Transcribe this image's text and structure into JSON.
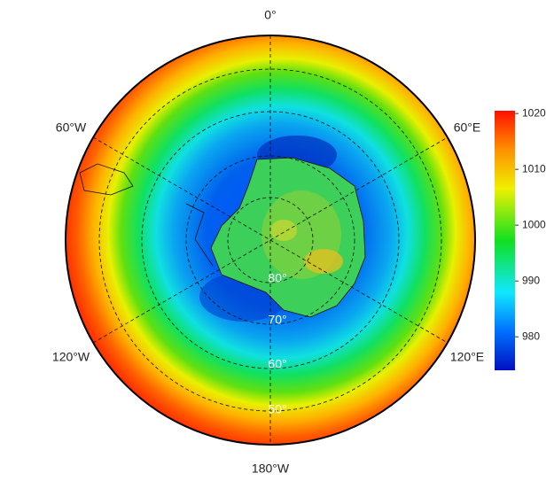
{
  "map": {
    "lon_labels": {
      "top": "0°",
      "upper_right": "60°E",
      "lower_right": "120°E",
      "bottom": "180°W",
      "lower_left": "120°W",
      "upper_left": "60°W"
    },
    "lat_labels": [
      "80°",
      "70°",
      "60°",
      "50°"
    ],
    "colorbar": {
      "lim": [
        974,
        1020.5
      ],
      "ticks": [
        980,
        990,
        1000,
        1010,
        1020
      ]
    }
  }
}
